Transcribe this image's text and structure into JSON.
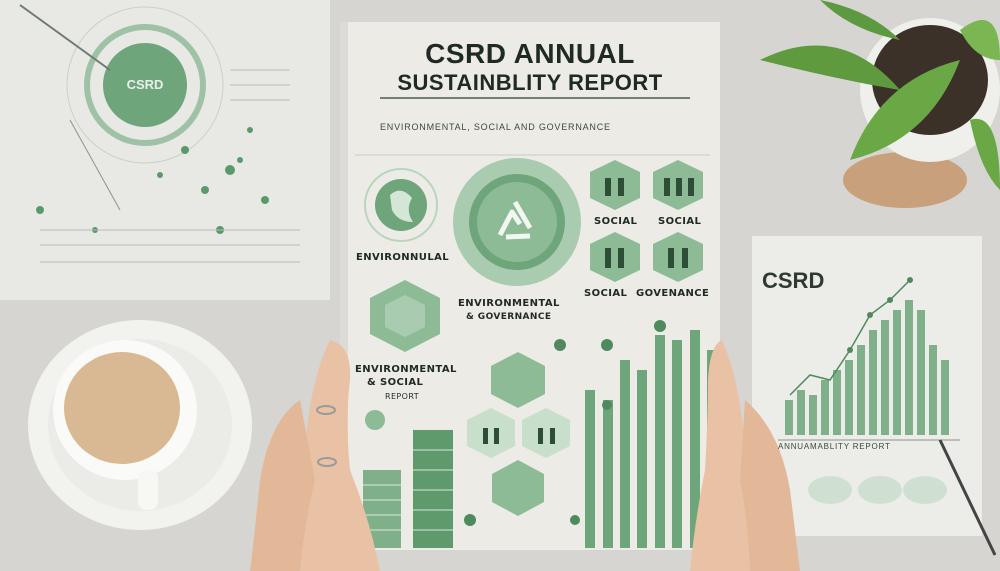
{
  "report": {
    "title_line1": "CSRD ANNUAL",
    "title_line2": "SUSTAINBLITY REPORT",
    "subtitle": "ENVIRONMENTAL, SOCIAL AND GOVERNANCE",
    "labels": {
      "environmental_left": "ENVIRONNULAL",
      "environmental_center": "ENVIRONMENTAL",
      "environmental_center_sub": "& GOVERNANCE",
      "env_social_left_1": "ENVIRONMENTAL",
      "env_social_left_2": "& SOCIAL",
      "report_small": "REPORT",
      "social_1": "SOCIAL",
      "social_2": "SOCIAL",
      "social_3": "SOCIAL",
      "governance": "GOVENANCE"
    }
  },
  "left_sheet": {
    "badge": "CSRD"
  },
  "right_sheet": {
    "title": "CSRD",
    "caption": "ANNUAMABLITY REPORT"
  },
  "colors": {
    "green_dark": "#4f8a5f",
    "green_mid": "#7fb08a",
    "green_light": "#b9d6bd",
    "paper": "#ecebe6",
    "coffee": "#d8b994"
  }
}
